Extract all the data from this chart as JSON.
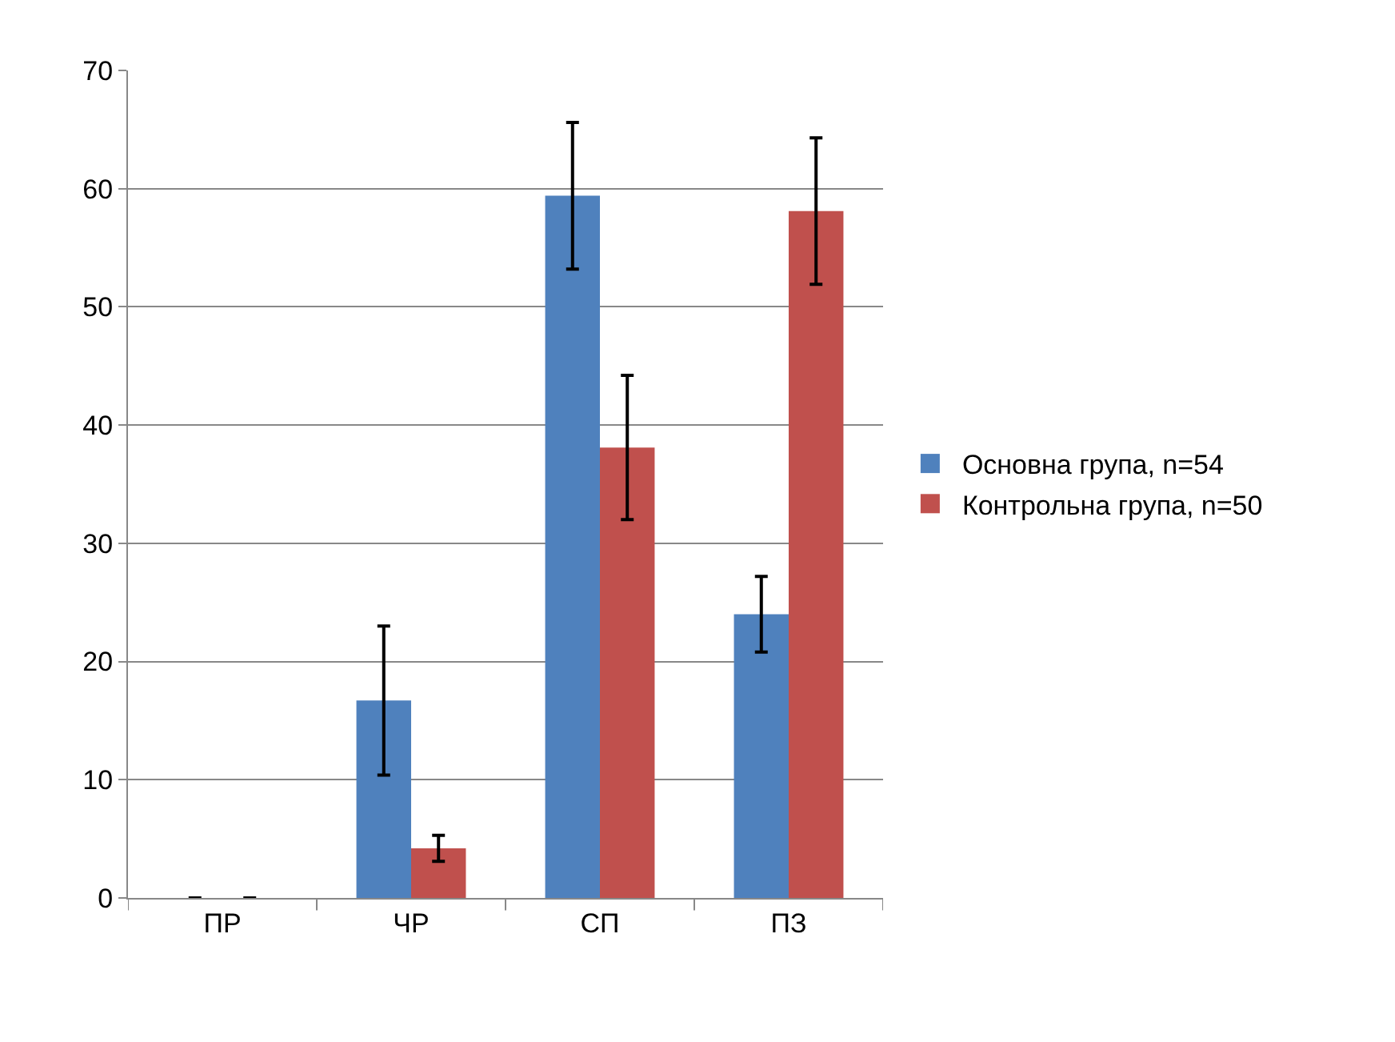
{
  "chart_data": {
    "type": "bar",
    "categories": [
      "ПР",
      "ЧР",
      "СП",
      "ПЗ"
    ],
    "series": [
      {
        "name": "Основна група, n=54",
        "color": "#4f81bd",
        "values": [
          0,
          16.7,
          59.4,
          24.0
        ],
        "errors": [
          null,
          6.3,
          6.2,
          3.2
        ]
      },
      {
        "name": "Контрольна група, n=50",
        "color": "#c0504d",
        "values": [
          0,
          4.2,
          38.1,
          58.1
        ],
        "errors": [
          null,
          1.1,
          6.1,
          6.2
        ]
      }
    ],
    "ylim": [
      0,
      70
    ],
    "yticks": [
      0,
      10,
      20,
      30,
      40,
      50,
      60,
      70
    ],
    "grid": "y",
    "legend": "right"
  }
}
